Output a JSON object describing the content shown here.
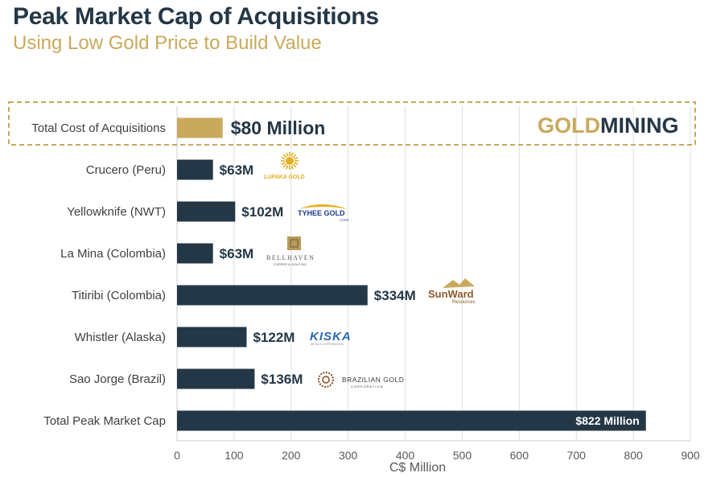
{
  "header": {
    "title": "Peak Market Cap of Acquisitions",
    "subtitle": "Using Low Gold Price to Build Value"
  },
  "brand": {
    "gold_part": "GOLD",
    "dark_part": "MINING"
  },
  "colors": {
    "dark_bar": "#243746",
    "gold_bar": "#c9a95c",
    "title": "#243746",
    "subtitle": "#c9a95c",
    "grid": "#e0e0e0",
    "label": "#404040"
  },
  "chart_data": {
    "type": "bar",
    "orientation": "horizontal",
    "xlabel": "C$ Million",
    "xlim": [
      0,
      900
    ],
    "xticks": [
      "0",
      "100",
      "200",
      "300",
      "400",
      "500",
      "600",
      "700",
      "800",
      "900"
    ],
    "grid": true,
    "categories": [
      "Total Cost of Acquisitions",
      "Crucero (Peru)",
      "Yellowknife (NWT)",
      "La Mina (Colombia)",
      "Titiribi (Colombia)",
      "Whistler (Alaska)",
      "Sao Jorge (Brazil)",
      "Total Peak Market Cap"
    ],
    "values": [
      80,
      63,
      102,
      63,
      334,
      122,
      136,
      822
    ],
    "data_labels": [
      "$80 Million",
      "$63M",
      "$102M",
      "$63M",
      "$334M",
      "$122M",
      "$136M",
      "$822 Million"
    ],
    "bar_colors": [
      "#c9a95c",
      "#243746",
      "#243746",
      "#243746",
      "#243746",
      "#243746",
      "#243746",
      "#243746"
    ]
  },
  "company_logos": [
    {
      "icon": "sun-icon",
      "text": "LUPAKA GOLD",
      "color": "#e0b020"
    },
    {
      "icon": "arc-icon",
      "text": "TYHEE GOLD",
      "sub": "CORP",
      "color": "#1a3a8a"
    },
    {
      "icon": "square-emblem-icon",
      "text": "BELLHAVEN",
      "sub": "COPPER & GOLD INC",
      "color": "#555555"
    },
    {
      "icon": "mountain-icon",
      "text": "SunWard",
      "sub": "Resources",
      "color": "#8a5a2a"
    },
    {
      "icon": "",
      "text": "KISKA",
      "sub": "METALS CORPORATION",
      "color": "#2a6ab0"
    },
    {
      "icon": "ring-icon",
      "text": "BRAZILIAN GOLD",
      "sub": "CORPORATION",
      "color": "#8a4a1a"
    }
  ]
}
